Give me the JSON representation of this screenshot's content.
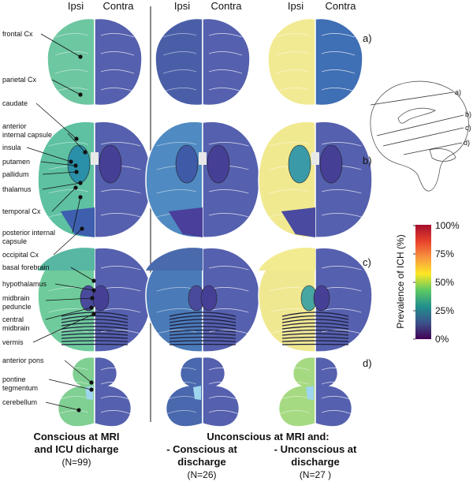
{
  "headers": {
    "ipsi": "Ipsi",
    "contra": "Contra"
  },
  "slice_labels": [
    "a)",
    "b)",
    "c)",
    "d)"
  ],
  "sagittal_labels": [
    "a)",
    "b)",
    "c)",
    "d)"
  ],
  "region_labels": [
    "frontal Cx",
    "parietal Cx",
    "caudate",
    "anterior",
    "internal capsule",
    "insula",
    "putamen",
    "pallidum",
    "thalamus",
    "temporal Cx",
    "posterior internal",
    "capsule",
    "occipital Cx",
    "basal forebrain",
    "hypothalamus",
    "midbrain",
    "peduncle",
    "central",
    "midbrain",
    "vermis",
    "anterior pons",
    "pontine",
    "tegmentum",
    "cerebellum"
  ],
  "groups": [
    {
      "title_lines": [
        "Conscious at MRI",
        "and ICU dicharge"
      ],
      "n": "(N=99)"
    },
    {
      "title_lines": [
        "Unconscious at MRI and:"
      ],
      "sub_left": [
        "- Conscious at",
        "discharge"
      ],
      "n_left": "(N=26)",
      "sub_right": [
        "- Unconscious at",
        "discharge"
      ],
      "n_right": "(N=27 )"
    }
  ],
  "colorbar": {
    "title": "Prevalence of ICH (%)",
    "ticks": [
      "100%",
      "75%",
      "50%",
      "25%",
      "0%"
    ],
    "stops": [
      "#440154",
      "#3b528b",
      "#21908d",
      "#5dc963",
      "#fde725",
      "#f89540",
      "#e8412c",
      "#a50f2d"
    ]
  },
  "colors": {
    "low": "#4a3f9a",
    "contra": "#5560ae",
    "teal": "#3aa8a0",
    "mint": "#6fd0a6",
    "light_green": "#9ad97e",
    "yellow": "#f3eb8f",
    "blue_mid": "#4f86c6"
  }
}
